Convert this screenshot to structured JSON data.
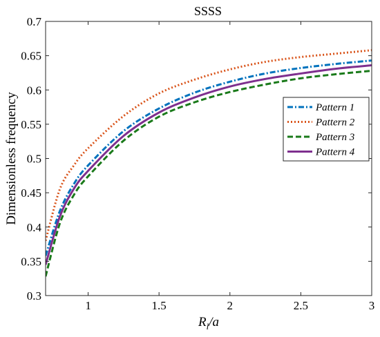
{
  "chart_data": {
    "type": "line",
    "title": "SSSS",
    "xlabel": {
      "main": "R",
      "sub": "l",
      "rest": "/a"
    },
    "ylabel": "Dimensionless frequency",
    "xlim": [
      0.7,
      3.0
    ],
    "ylim": [
      0.3,
      0.7
    ],
    "xticks": [
      1,
      1.5,
      2,
      2.5,
      3
    ],
    "xtick_labels": [
      "1",
      "1.5",
      "2",
      "2.5",
      "3"
    ],
    "yticks": [
      0.3,
      0.35,
      0.4,
      0.45,
      0.5,
      0.55,
      0.6,
      0.65,
      0.7
    ],
    "ytick_labels": [
      "0.3",
      "0.35",
      "0.4",
      "0.45",
      "0.5",
      "0.55",
      "0.6",
      "0.65",
      "0.7"
    ],
    "grid": false,
    "legend_position": "right",
    "series": [
      {
        "name": "Pattern 1",
        "color": "#0072BD",
        "dash": "dashdot",
        "x": [
          0.7,
          0.8,
          0.9,
          1.0,
          1.25,
          1.5,
          1.75,
          2.0,
          2.25,
          2.5,
          2.75,
          3.0
        ],
        "y": [
          0.358,
          0.423,
          0.463,
          0.49,
          0.54,
          0.573,
          0.596,
          0.612,
          0.624,
          0.632,
          0.638,
          0.643
        ]
      },
      {
        "name": "Pattern 2",
        "color": "#D95319",
        "dash": "dotted",
        "x": [
          0.7,
          0.8,
          0.9,
          1.0,
          1.25,
          1.5,
          1.75,
          2.0,
          2.25,
          2.5,
          2.75,
          3.0
        ],
        "y": [
          0.38,
          0.455,
          0.49,
          0.515,
          0.562,
          0.595,
          0.615,
          0.63,
          0.641,
          0.648,
          0.653,
          0.658
        ]
      },
      {
        "name": "Pattern 3",
        "color": "#1A7A1A",
        "dash": "dashed",
        "x": [
          0.7,
          0.8,
          0.9,
          1.0,
          1.25,
          1.5,
          1.75,
          2.0,
          2.25,
          2.5,
          2.75,
          3.0
        ],
        "y": [
          0.328,
          0.405,
          0.447,
          0.474,
          0.526,
          0.561,
          0.582,
          0.597,
          0.608,
          0.617,
          0.623,
          0.628
        ]
      },
      {
        "name": "Pattern 4",
        "color": "#7E2F8E",
        "dash": "solid",
        "x": [
          0.7,
          0.8,
          0.9,
          1.0,
          1.25,
          1.5,
          1.75,
          2.0,
          2.25,
          2.5,
          2.75,
          3.0
        ],
        "y": [
          0.345,
          0.415,
          0.456,
          0.482,
          0.533,
          0.567,
          0.589,
          0.605,
          0.616,
          0.624,
          0.631,
          0.636
        ]
      }
    ]
  }
}
